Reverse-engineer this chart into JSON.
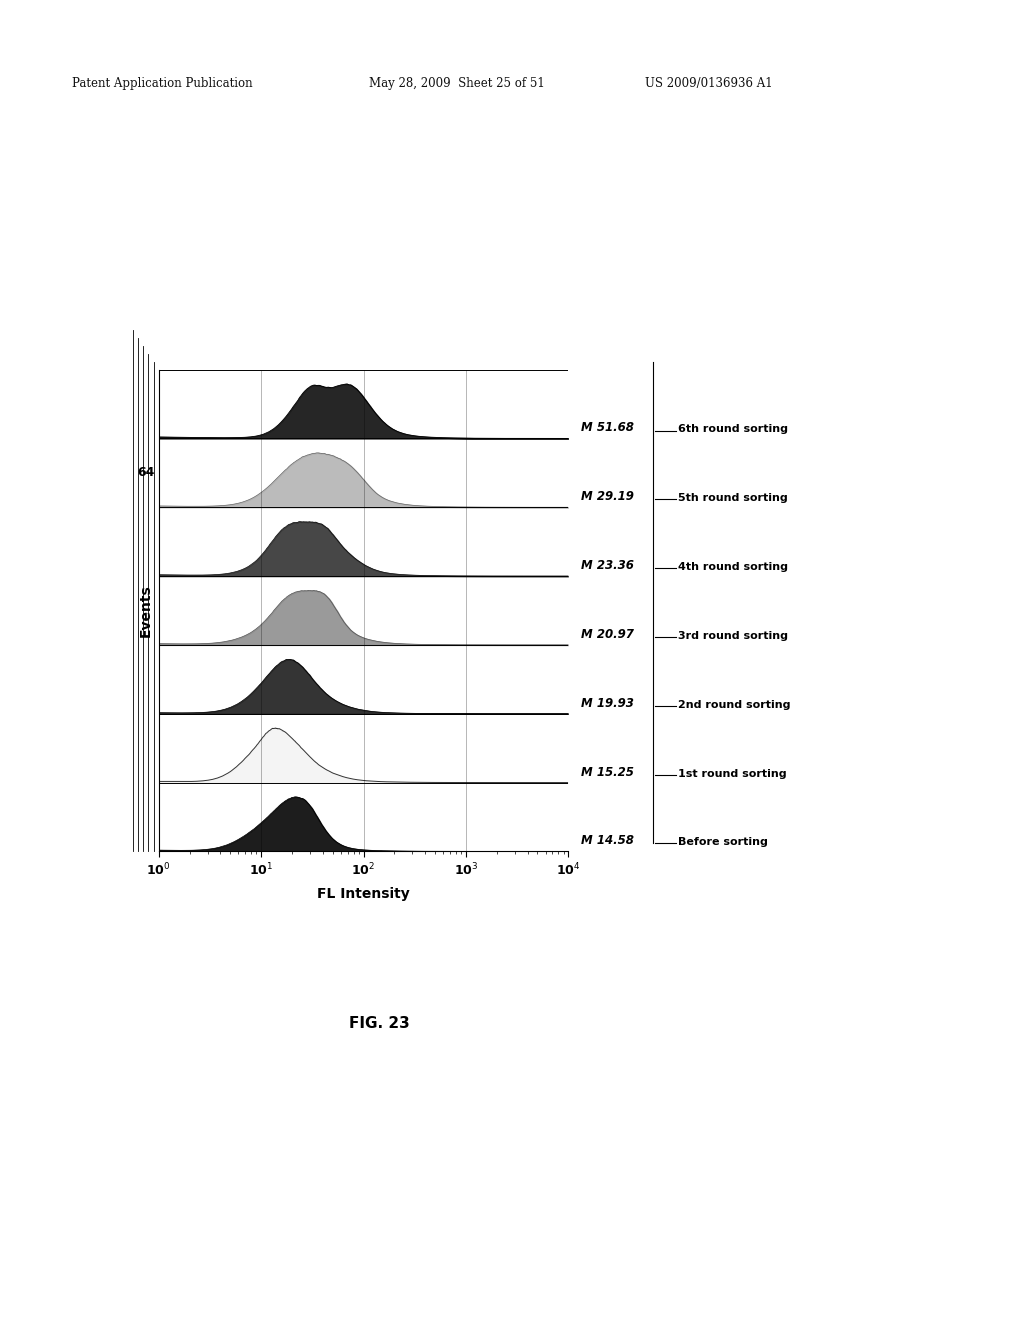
{
  "header_left": "Patent Application Publication",
  "header_mid": "May 28, 2009  Sheet 25 of 51",
  "header_right": "US 2009/0136936 A1",
  "fig_label": "FIG. 23",
  "xlabel": "FL Intensity",
  "ylabel": "Events",
  "y_tick_label": "64",
  "series": [
    {
      "label": "6th round sorting",
      "M": "M 51.68",
      "peak_log": 1.72,
      "sigma": 0.3,
      "style": "dark_top",
      "seed": 10
    },
    {
      "label": "5th round sorting",
      "M": "M 29.19",
      "peak_log": 1.55,
      "sigma": 0.35,
      "style": "light_gray",
      "seed": 20
    },
    {
      "label": "4th round sorting",
      "M": "M 23.36",
      "peak_log": 1.45,
      "sigma": 0.32,
      "style": "dark_mid",
      "seed": 30
    },
    {
      "label": "3rd round sorting",
      "M": "M 20.97",
      "peak_log": 1.38,
      "sigma": 0.33,
      "style": "gray_mid",
      "seed": 40
    },
    {
      "label": "2nd round sorting",
      "M": "M 19.93",
      "peak_log": 1.3,
      "sigma": 0.32,
      "style": "dark_fill",
      "seed": 50
    },
    {
      "label": "1st round sorting",
      "M": "M 15.25",
      "peak_log": 1.22,
      "sigma": 0.3,
      "style": "outline",
      "seed": 60
    },
    {
      "label": "Before sorting",
      "M": "M 14.58",
      "peak_log": 1.18,
      "sigma": 0.28,
      "style": "black_fill",
      "seed": 70
    }
  ],
  "background_color": "#ffffff"
}
